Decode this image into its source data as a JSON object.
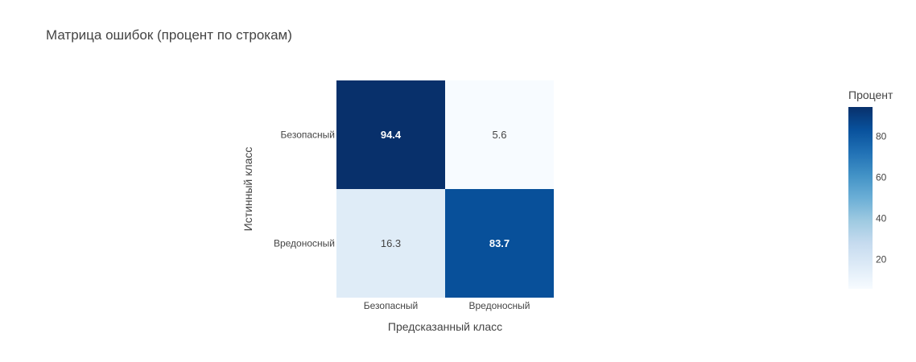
{
  "chart_data": {
    "type": "heatmap",
    "title": "Матрица ошибок (процент по строкам)",
    "xlabel": "Предсказанный класс",
    "ylabel": "Истинный класс",
    "x_categories": [
      "Безопасный",
      "Вредоносный"
    ],
    "y_categories": [
      "Безопасный",
      "Вредоносный"
    ],
    "values": [
      [
        94.4,
        5.6
      ],
      [
        16.3,
        83.7
      ]
    ],
    "colorscale": "Blues",
    "colorbar": {
      "title": "Процент",
      "ticks": [
        20,
        40,
        60,
        80
      ],
      "range": [
        5.6,
        94.4
      ]
    }
  }
}
